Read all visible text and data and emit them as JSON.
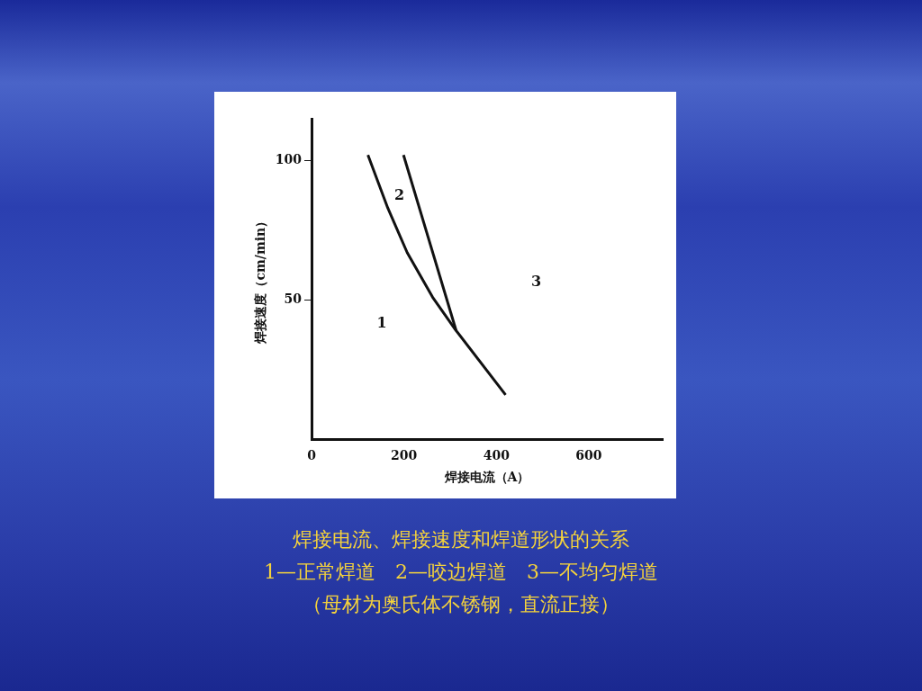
{
  "chart_data": {
    "type": "line",
    "title": "焊接电流、焊接速度和焊道形状的关系",
    "xlabel": "焊接电流（A）",
    "ylabel": "焊接速度（cm/min）",
    "xlim": [
      0,
      760
    ],
    "xticks": [
      0,
      200,
      400,
      600
    ],
    "ylim": [
      0,
      115
    ],
    "yticks": [
      50,
      100
    ],
    "series": [
      {
        "color": "#111111",
        "x": [
          122,
          165,
          207,
          262,
          313,
          420
        ],
        "values": [
          102,
          83,
          67,
          51,
          39,
          16
        ]
      },
      {
        "color": "#111111",
        "x": [
          199,
          313
        ],
        "values": [
          102,
          39
        ]
      }
    ],
    "annotations": [
      "1",
      "2",
      "3",
      "1—正常焊道　2—咬边焊道　3—不均匀焊道",
      "（母材为奥氏体不锈钢，直流正接）"
    ],
    "marker": "none",
    "line_style": "solid",
    "grid": false,
    "legend": false
  }
}
